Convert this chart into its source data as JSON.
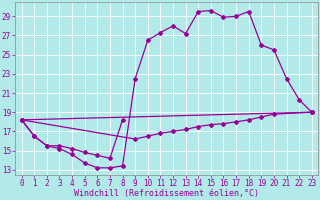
{
  "background_color": "#b2eaea",
  "grid_color": "#ffffff",
  "line_color": "#990099",
  "marker": "D",
  "markersize": 2,
  "linewidth": 0.9,
  "xlabel": "Windchill (Refroidissement éolien,°C)",
  "xlabel_fontsize": 6.0,
  "tick_fontsize": 5.5,
  "ylim": [
    12.5,
    30.5
  ],
  "xlim": [
    -0.5,
    23.5
  ],
  "yticks": [
    13,
    15,
    17,
    19,
    21,
    23,
    25,
    27,
    29
  ],
  "xticks": [
    0,
    1,
    2,
    3,
    4,
    5,
    6,
    7,
    8,
    9,
    10,
    11,
    12,
    13,
    14,
    15,
    16,
    17,
    18,
    19,
    20,
    21,
    22,
    23
  ],
  "series1_x": [
    0,
    1,
    2,
    3,
    4,
    5,
    6,
    7,
    8,
    9,
    10,
    11,
    12,
    13,
    14,
    15,
    16,
    17,
    18,
    19,
    20,
    21,
    22,
    23
  ],
  "series1_y": [
    18.2,
    16.5,
    15.5,
    15.2,
    14.6,
    13.7,
    13.2,
    13.2,
    13.4,
    22.5,
    26.5,
    27.3,
    28.0,
    27.2,
    29.5,
    29.6,
    28.9,
    29.0,
    29.5,
    26.0,
    25.5,
    22.5,
    20.3,
    19.0
  ],
  "series2_x": [
    0,
    1,
    2,
    3,
    4,
    5,
    6,
    7,
    8
  ],
  "series2_y": [
    18.2,
    16.5,
    15.5,
    15.5,
    15.2,
    14.8,
    14.5,
    14.2,
    18.2
  ],
  "series3_x": [
    0,
    23
  ],
  "series3_y": [
    18.2,
    19.0
  ],
  "series4_x": [
    0,
    9,
    10,
    11,
    12,
    13,
    14,
    15,
    16,
    17,
    18,
    19,
    20,
    23
  ],
  "series4_y": [
    18.2,
    16.2,
    16.5,
    16.8,
    17.0,
    17.2,
    17.5,
    17.7,
    17.8,
    18.0,
    18.2,
    18.5,
    18.8,
    19.0
  ]
}
